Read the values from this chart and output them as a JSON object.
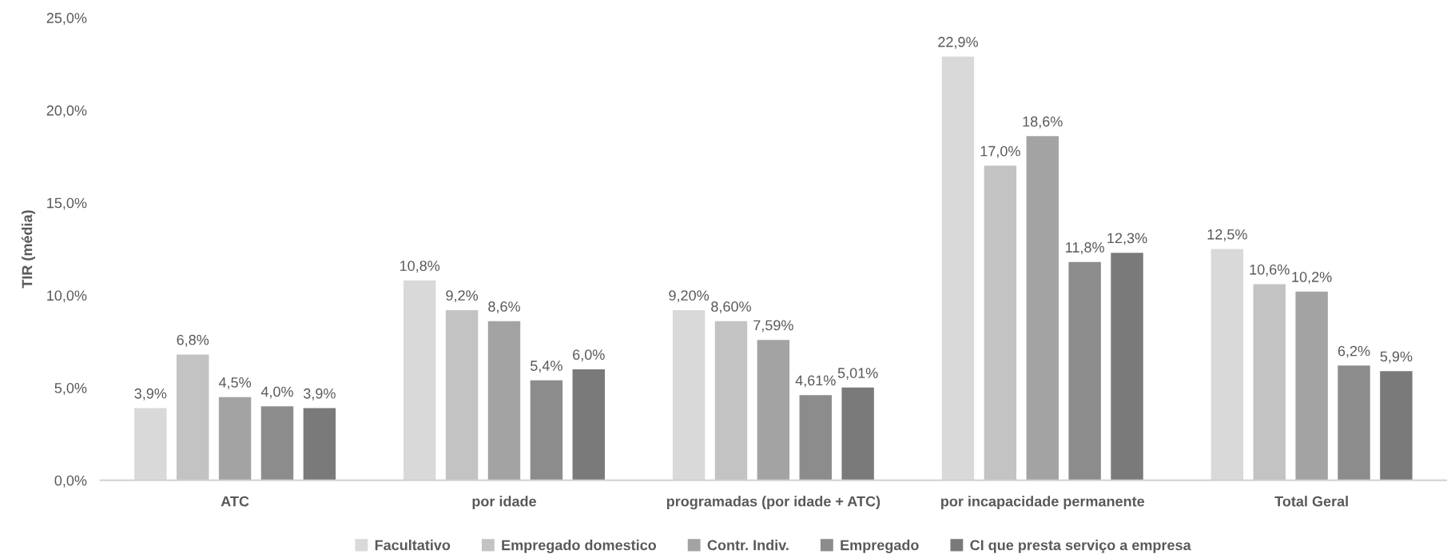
{
  "chart_data": {
    "type": "bar",
    "ylabel": "TIR (média)",
    "categories": [
      "ATC",
      "por idade",
      "programadas (por idade + ATC)",
      "por incapacidade permanente",
      "Total Geral"
    ],
    "series": [
      {
        "name": "Facultativo",
        "color": "#d9d9d9",
        "values": [
          3.9,
          10.8,
          9.2,
          22.9,
          12.5
        ],
        "value_labels": [
          "3,9%",
          "10,8%",
          "9,20%",
          "22,9%",
          "12,5%"
        ]
      },
      {
        "name": "Empregado domestico",
        "color": "#c3c3c3",
        "values": [
          6.8,
          9.2,
          8.6,
          17.0,
          10.6
        ],
        "value_labels": [
          "6,8%",
          "9,2%",
          "8,60%",
          "17,0%",
          "10,6%"
        ]
      },
      {
        "name": "Contr. Indiv.",
        "color": "#a3a3a3",
        "values": [
          4.5,
          8.6,
          7.59,
          18.6,
          10.2
        ],
        "value_labels": [
          "4,5%",
          "8,6%",
          "7,59%",
          "18,6%",
          "10,2%"
        ]
      },
      {
        "name": "Empregado",
        "color": "#8c8c8c",
        "values": [
          4.0,
          5.4,
          4.61,
          11.8,
          6.2
        ],
        "value_labels": [
          "4,0%",
          "5,4%",
          "4,61%",
          "11,8%",
          "6,2%"
        ]
      },
      {
        "name": "CI que presta serviço a empresa",
        "color": "#7a7a7a",
        "values": [
          3.9,
          6.0,
          5.01,
          12.3,
          5.9
        ],
        "value_labels": [
          "3,9%",
          "6,0%",
          "5,01%",
          "12,3%",
          "5,9%"
        ]
      }
    ],
    "ylim": [
      0,
      25
    ],
    "yticks": [
      {
        "value": 0,
        "label": "0,0%"
      },
      {
        "value": 5,
        "label": "5,0%"
      },
      {
        "value": 10,
        "label": "10,0%"
      },
      {
        "value": 15,
        "label": "15,0%"
      },
      {
        "value": 20,
        "label": "20,0%"
      },
      {
        "value": 25,
        "label": "25,0%"
      }
    ],
    "grid": false,
    "legend": "bottom"
  }
}
